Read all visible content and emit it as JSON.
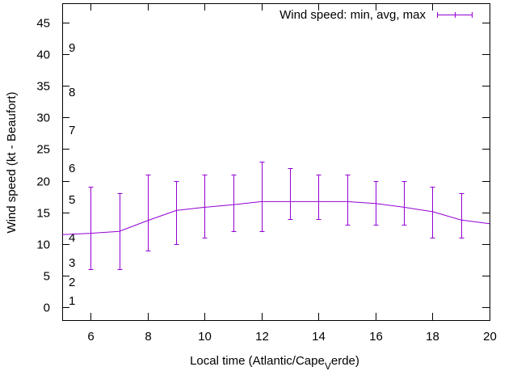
{
  "chart_data": {
    "type": "line",
    "title": "",
    "xlabel_prefix": "Local time (Atlantic/Cape",
    "xlabel_subscript": "V",
    "xlabel_suffix": "erde)",
    "ylabel": "Wind speed (kt - Beaufort)",
    "xlim": [
      5,
      20
    ],
    "ylim": [
      -2,
      48
    ],
    "x_ticks": [
      6,
      8,
      10,
      12,
      14,
      16,
      18,
      20
    ],
    "y_ticks": [
      0,
      5,
      10,
      15,
      20,
      25,
      30,
      35,
      40,
      45
    ],
    "grid": false,
    "legend_position": "top-right",
    "beaufort_labels": [
      {
        "label": "1",
        "y": 1.0
      },
      {
        "label": "2",
        "y": 4.0
      },
      {
        "label": "3",
        "y": 7.0
      },
      {
        "label": "4",
        "y": 11.0
      },
      {
        "label": "5",
        "y": 17.0
      },
      {
        "label": "6",
        "y": 22.0
      },
      {
        "label": "7",
        "y": 28.0
      },
      {
        "label": "8",
        "y": 34.0
      },
      {
        "label": "9",
        "y": 41.0
      }
    ],
    "series": [
      {
        "name": "Wind speed: min, avg, max",
        "color": "#9400d3",
        "line_x": [
          5,
          6,
          7,
          8,
          9,
          10,
          11,
          12,
          13,
          14,
          15,
          16,
          17,
          18,
          19,
          20
        ],
        "line_y": [
          11.5,
          11.7,
          12.0,
          13.7,
          15.3,
          15.8,
          16.2,
          16.7,
          16.7,
          16.7,
          16.7,
          16.4,
          15.8,
          15.1,
          13.8,
          13.2
        ],
        "error_bars": [
          {
            "x": 6,
            "min": 6,
            "max": 19
          },
          {
            "x": 7,
            "min": 6,
            "max": 18
          },
          {
            "x": 8,
            "min": 9,
            "max": 21
          },
          {
            "x": 9,
            "min": 10,
            "max": 20
          },
          {
            "x": 10,
            "min": 11,
            "max": 21
          },
          {
            "x": 11,
            "min": 12,
            "max": 21
          },
          {
            "x": 12,
            "min": 12,
            "max": 23
          },
          {
            "x": 13,
            "min": 14,
            "max": 22
          },
          {
            "x": 14,
            "min": 14,
            "max": 21
          },
          {
            "x": 15,
            "min": 13,
            "max": 21
          },
          {
            "x": 16,
            "min": 13,
            "max": 20
          },
          {
            "x": 17,
            "min": 13,
            "max": 20
          },
          {
            "x": 18,
            "min": 11,
            "max": 19
          },
          {
            "x": 19,
            "min": 11,
            "max": 18
          }
        ]
      }
    ]
  }
}
